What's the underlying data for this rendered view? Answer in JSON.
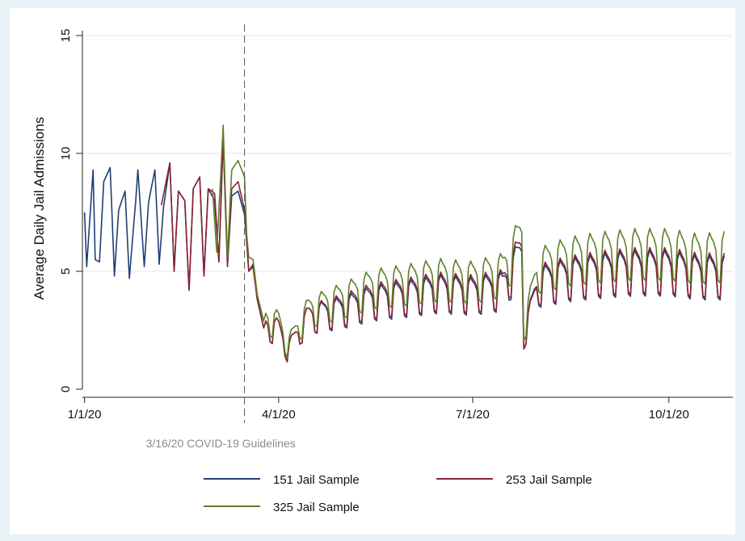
{
  "chart_data": {
    "type": "line",
    "ylabel": "Average Daily Jail Admissions",
    "xlabel": "",
    "ylim": [
      0,
      15
    ],
    "yticks": [
      "0",
      "5",
      "10",
      "15"
    ],
    "xticks": [
      {
        "date": "2020-01-01",
        "label": "1/1/20"
      },
      {
        "date": "2020-04-01",
        "label": "4/1/20"
      },
      {
        "date": "2020-07-01",
        "label": "7/1/20"
      },
      {
        "date": "2020-10-01",
        "label": "10/1/20"
      }
    ],
    "xlim": [
      "2019-12-31",
      "2020-10-31"
    ],
    "grid": "horizontal",
    "annotation": {
      "date": "2020-03-16",
      "label": "3/16/20 COVID-19 Guidelines"
    },
    "legend_position": "bottom",
    "colors": {
      "s151": "#1f3f73",
      "s253": "#8b2232",
      "s325": "#5f7f2a",
      "vline": "#555555"
    },
    "series": [
      {
        "name": "151 Jail Sample",
        "key": "s151",
        "start": "2020-01-01",
        "end": "2020-10-27",
        "anchors": [
          [
            "2020-01-01",
            7.5
          ],
          [
            "2020-01-02",
            5.2
          ],
          [
            "2020-01-05",
            9.3
          ],
          [
            "2020-01-06",
            5.5
          ],
          [
            "2020-01-08",
            5.4
          ],
          [
            "2020-01-10",
            8.8
          ],
          [
            "2020-01-13",
            9.4
          ],
          [
            "2020-01-15",
            4.8
          ],
          [
            "2020-01-17",
            7.6
          ],
          [
            "2020-01-20",
            8.4
          ],
          [
            "2020-01-22",
            4.7
          ],
          [
            "2020-01-25",
            8.0
          ],
          [
            "2020-01-26",
            9.3
          ],
          [
            "2020-01-29",
            5.2
          ],
          [
            "2020-01-31",
            7.9
          ],
          [
            "2020-02-01",
            8.4
          ],
          [
            "2020-02-03",
            9.3
          ],
          [
            "2020-02-05",
            5.3
          ],
          [
            "2020-02-07",
            7.7
          ],
          [
            "2020-02-10",
            9.6
          ],
          [
            "2020-02-12",
            5.0
          ],
          [
            "2020-02-14",
            8.4
          ],
          [
            "2020-02-17",
            8.0
          ],
          [
            "2020-02-19",
            4.2
          ],
          [
            "2020-02-21",
            8.5
          ],
          [
            "2020-02-24",
            9.0
          ],
          [
            "2020-02-26",
            4.8
          ],
          [
            "2020-02-28",
            8.5
          ],
          [
            "2020-03-02",
            8.0
          ],
          [
            "2020-03-04",
            5.4
          ],
          [
            "2020-03-06",
            10.6
          ],
          [
            "2020-03-08",
            5.2
          ],
          [
            "2020-03-10",
            8.2
          ],
          [
            "2020-03-13",
            8.4
          ],
          [
            "2020-03-16",
            7.4
          ],
          [
            "2020-03-17",
            6.3
          ],
          [
            "2020-03-18",
            5.0
          ],
          [
            "2020-03-20",
            5.2
          ],
          [
            "2020-03-22",
            3.8
          ],
          [
            "2020-03-25",
            2.6
          ],
          [
            "2020-04-01",
            2.5
          ],
          [
            "2020-04-05",
            1.6
          ],
          [
            "2020-04-15",
            3.0
          ],
          [
            "2020-05-01",
            3.3
          ],
          [
            "2020-05-15",
            3.7
          ],
          [
            "2020-06-01",
            3.9
          ],
          [
            "2020-06-15",
            4.1
          ],
          [
            "2020-07-01",
            4.0
          ],
          [
            "2020-07-15",
            4.2
          ],
          [
            "2020-07-24",
            5.6
          ],
          [
            "2020-07-25",
            2.2
          ],
          [
            "2020-08-01",
            4.4
          ],
          [
            "2020-08-15",
            4.7
          ],
          [
            "2020-09-01",
            4.9
          ],
          [
            "2020-09-15",
            5.0
          ],
          [
            "2020-10-01",
            5.0
          ],
          [
            "2020-10-15",
            4.8
          ],
          [
            "2020-10-27",
            4.8
          ]
        ]
      },
      {
        "name": "253 Jail Sample",
        "key": "s253",
        "start": "2020-02-06",
        "end": "2020-10-27",
        "anchors": [
          [
            "2020-02-06",
            7.8
          ],
          [
            "2020-02-10",
            9.6
          ],
          [
            "2020-02-12",
            5.0
          ],
          [
            "2020-02-14",
            8.4
          ],
          [
            "2020-02-17",
            8.0
          ],
          [
            "2020-02-19",
            4.2
          ],
          [
            "2020-02-21",
            8.5
          ],
          [
            "2020-02-24",
            9.0
          ],
          [
            "2020-02-26",
            4.8
          ],
          [
            "2020-02-28",
            8.5
          ],
          [
            "2020-03-02",
            8.3
          ],
          [
            "2020-03-04",
            5.4
          ],
          [
            "2020-03-06",
            10.8
          ],
          [
            "2020-03-08",
            5.3
          ],
          [
            "2020-03-10",
            8.5
          ],
          [
            "2020-03-13",
            8.8
          ],
          [
            "2020-03-16",
            7.6
          ],
          [
            "2020-03-17",
            6.3
          ],
          [
            "2020-03-18",
            5.0
          ],
          [
            "2020-03-20",
            5.3
          ],
          [
            "2020-03-22",
            3.8
          ],
          [
            "2020-03-25",
            2.6
          ],
          [
            "2020-04-01",
            2.5
          ],
          [
            "2020-04-05",
            1.6
          ],
          [
            "2020-04-15",
            3.0
          ],
          [
            "2020-05-01",
            3.4
          ],
          [
            "2020-05-15",
            3.8
          ],
          [
            "2020-06-01",
            4.0
          ],
          [
            "2020-06-15",
            4.2
          ],
          [
            "2020-07-01",
            4.1
          ],
          [
            "2020-07-15",
            4.3
          ],
          [
            "2020-07-24",
            5.8
          ],
          [
            "2020-07-25",
            2.2
          ],
          [
            "2020-08-01",
            4.5
          ],
          [
            "2020-08-15",
            4.8
          ],
          [
            "2020-09-01",
            5.0
          ],
          [
            "2020-09-15",
            5.1
          ],
          [
            "2020-10-01",
            5.1
          ],
          [
            "2020-10-15",
            4.9
          ],
          [
            "2020-10-27",
            4.9
          ]
        ]
      },
      {
        "name": "325 Jail Sample",
        "key": "s325",
        "start": "2020-03-01",
        "end": "2020-10-27",
        "anchors": [
          [
            "2020-03-01",
            8.5
          ],
          [
            "2020-03-03",
            5.8
          ],
          [
            "2020-03-06",
            11.2
          ],
          [
            "2020-03-08",
            5.6
          ],
          [
            "2020-03-10",
            9.3
          ],
          [
            "2020-03-13",
            9.7
          ],
          [
            "2020-03-16",
            9.0
          ],
          [
            "2020-03-17",
            6.6
          ],
          [
            "2020-03-18",
            5.6
          ],
          [
            "2020-03-20",
            5.5
          ],
          [
            "2020-03-22",
            4.0
          ],
          [
            "2020-03-25",
            2.9
          ],
          [
            "2020-04-01",
            2.8
          ],
          [
            "2020-04-05",
            1.8
          ],
          [
            "2020-04-15",
            3.3
          ],
          [
            "2020-05-01",
            3.8
          ],
          [
            "2020-05-15",
            4.3
          ],
          [
            "2020-06-01",
            4.5
          ],
          [
            "2020-06-15",
            4.7
          ],
          [
            "2020-07-01",
            4.6
          ],
          [
            "2020-07-15",
            4.9
          ],
          [
            "2020-07-24",
            6.4
          ],
          [
            "2020-07-25",
            2.6
          ],
          [
            "2020-08-01",
            5.1
          ],
          [
            "2020-08-15",
            5.5
          ],
          [
            "2020-09-01",
            5.7
          ],
          [
            "2020-09-15",
            5.8
          ],
          [
            "2020-10-01",
            5.8
          ],
          [
            "2020-10-15",
            5.6
          ],
          [
            "2020-10-27",
            5.7
          ]
        ]
      }
    ]
  }
}
